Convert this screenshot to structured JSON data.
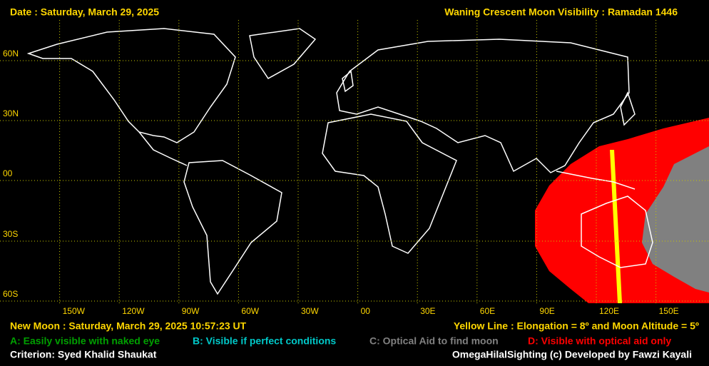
{
  "header": {
    "date": "Date : Saturday, March 29, 2025",
    "title": "Waning Crescent Moon Visibility : Ramadan 1446"
  },
  "lat_labels": [
    "60N",
    "30N",
    "00",
    "30S",
    "60S"
  ],
  "lon_labels": [
    "150W",
    "120W",
    "90W",
    "60W",
    "30W",
    "00",
    "30E",
    "60E",
    "90E",
    "120E",
    "150E"
  ],
  "footer": {
    "new_moon": "New Moon : Saturday, March 29, 2025  10:57:23  UT",
    "yellow_line": "Yellow Line : Elongation = 8º  and Moon Altitude = 5º",
    "legend": [
      "A: Easily visible with naked eye",
      "B: Visible if perfect conditions",
      "C: Optical Aid to find moon",
      "D: Visible with optical aid only"
    ],
    "criterion": "Criterion: Syed Khalid Shaukat",
    "credit": "OmegaHilalSighting  (c)  Developed by Fawzi Kayali"
  }
}
